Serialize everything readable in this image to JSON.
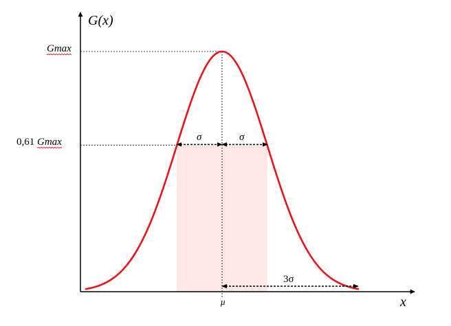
{
  "axes": {
    "y_label": "G(x)",
    "x_label": "x"
  },
  "labels": {
    "gmax": "Gmax",
    "gmax_061_prefix": "0,61 ",
    "gmax_061_suffix": "Gmax",
    "sigma_left": "σ",
    "sigma_right": "σ",
    "three_sigma": "3σ",
    "mu": "μ"
  },
  "colors": {
    "curve": "#e8141c",
    "band": "#fde8e6",
    "axis": "#000000",
    "guide": "#000000",
    "spellcheck": "#e8141c"
  },
  "chart_data": {
    "type": "line",
    "curve": "gaussian",
    "mu": 0,
    "sigma": 1,
    "peak_value": 1,
    "half_width_level": 0.61,
    "x_range": [
      -3,
      3
    ],
    "shaded_band": [
      -1,
      1
    ]
  }
}
